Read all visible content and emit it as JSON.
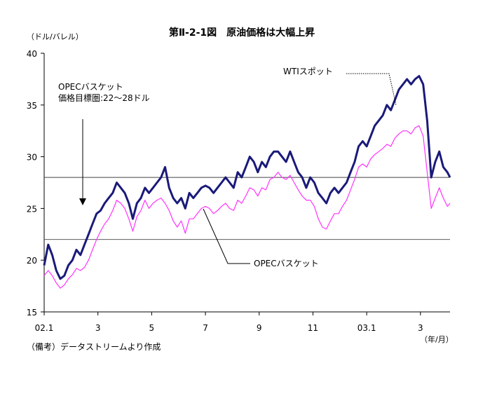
{
  "chart_data": {
    "type": "line",
    "title": "第Ⅱ-2-1図　原油価格は大幅上昇",
    "ylabel": "（ドル/バレル）",
    "xlabel": "（年/月）",
    "source_note": "（備考）データストリームより作成",
    "ylim": [
      15,
      40
    ],
    "yticks": [
      15,
      20,
      25,
      30,
      35,
      40
    ],
    "xlim": [
      0,
      15.1
    ],
    "xticks": [
      {
        "pos": 0,
        "label": "02.1"
      },
      {
        "pos": 2,
        "label": "3"
      },
      {
        "pos": 4,
        "label": "5"
      },
      {
        "pos": 6,
        "label": "7"
      },
      {
        "pos": 8,
        "label": "9"
      },
      {
        "pos": 10,
        "label": "11"
      },
      {
        "pos": 12,
        "label": "03.1"
      },
      {
        "pos": 14,
        "label": "3"
      }
    ],
    "reference_lines": [
      {
        "y": 22
      },
      {
        "y": 28
      }
    ],
    "annotations": {
      "target_line1": "OPECバスケット",
      "target_line2": "価格目標圏:22～28ドル",
      "wti_label": "WTIスポット",
      "opec_label": "OPECバスケット"
    },
    "series": [
      {
        "name": "WTIスポット",
        "color": "#1a1a7a",
        "x": [
          0,
          0.15,
          0.3,
          0.45,
          0.6,
          0.75,
          0.9,
          1.05,
          1.2,
          1.35,
          1.5,
          1.65,
          1.8,
          1.95,
          2.1,
          2.25,
          2.4,
          2.55,
          2.7,
          2.85,
          3.0,
          3.15,
          3.3,
          3.45,
          3.6,
          3.75,
          3.9,
          4.05,
          4.2,
          4.35,
          4.5,
          4.65,
          4.8,
          4.95,
          5.1,
          5.25,
          5.4,
          5.55,
          5.7,
          5.85,
          6.0,
          6.15,
          6.3,
          6.45,
          6.6,
          6.75,
          6.9,
          7.05,
          7.2,
          7.35,
          7.5,
          7.65,
          7.8,
          7.95,
          8.1,
          8.25,
          8.4,
          8.55,
          8.7,
          8.85,
          9.0,
          9.15,
          9.3,
          9.45,
          9.6,
          9.75,
          9.9,
          10.05,
          10.2,
          10.35,
          10.5,
          10.65,
          10.8,
          10.95,
          11.1,
          11.25,
          11.4,
          11.55,
          11.7,
          11.85,
          12.0,
          12.15,
          12.3,
          12.45,
          12.6,
          12.75,
          12.9,
          13.05,
          13.2,
          13.35,
          13.5,
          13.65,
          13.8,
          13.95,
          14.1,
          14.25,
          14.4,
          14.55,
          14.7,
          14.85,
          15.0,
          15.1
        ],
        "values": [
          19.5,
          21.5,
          20.5,
          19.0,
          18.2,
          18.5,
          19.5,
          20.0,
          21.0,
          20.5,
          21.5,
          22.5,
          23.5,
          24.5,
          24.8,
          25.5,
          26.0,
          26.5,
          27.5,
          27.0,
          26.5,
          25.5,
          24.0,
          25.5,
          26.0,
          27.0,
          26.5,
          27.0,
          27.5,
          28.0,
          29.0,
          27.0,
          26.0,
          25.5,
          26.0,
          25.0,
          26.5,
          26.0,
          26.5,
          27.0,
          27.2,
          27.0,
          26.5,
          27.0,
          27.5,
          28.0,
          27.5,
          27.0,
          28.5,
          28.0,
          29.0,
          30.0,
          29.5,
          28.5,
          29.5,
          29.0,
          30.0,
          30.5,
          30.5,
          30.0,
          29.5,
          30.5,
          29.5,
          28.5,
          28.0,
          27.0,
          28.0,
          27.5,
          26.5,
          26.0,
          25.5,
          26.5,
          27.0,
          26.5,
          27.0,
          27.5,
          28.5,
          29.5,
          31.0,
          31.5,
          31.0,
          32.0,
          33.0,
          33.5,
          34.0,
          35.0,
          34.5,
          35.5,
          36.5,
          37.0,
          37.5,
          37.0,
          37.5,
          37.8,
          37.0,
          33.5,
          28.0,
          29.5,
          30.5,
          29.0,
          28.5,
          28.0
        ]
      },
      {
        "name": "OPECバスケット",
        "color": "#ff33ff",
        "x": [
          0,
          0.15,
          0.3,
          0.45,
          0.6,
          0.75,
          0.9,
          1.05,
          1.2,
          1.35,
          1.5,
          1.65,
          1.8,
          1.95,
          2.1,
          2.25,
          2.4,
          2.55,
          2.7,
          2.85,
          3.0,
          3.15,
          3.3,
          3.45,
          3.6,
          3.75,
          3.9,
          4.05,
          4.2,
          4.35,
          4.5,
          4.65,
          4.8,
          4.95,
          5.1,
          5.25,
          5.4,
          5.55,
          5.7,
          5.85,
          6.0,
          6.15,
          6.3,
          6.45,
          6.6,
          6.75,
          6.9,
          7.05,
          7.2,
          7.35,
          7.5,
          7.65,
          7.8,
          7.95,
          8.1,
          8.25,
          8.4,
          8.55,
          8.7,
          8.85,
          9.0,
          9.15,
          9.3,
          9.45,
          9.6,
          9.75,
          9.9,
          10.05,
          10.2,
          10.35,
          10.5,
          10.65,
          10.8,
          10.95,
          11.1,
          11.25,
          11.4,
          11.55,
          11.7,
          11.85,
          12.0,
          12.15,
          12.3,
          12.45,
          12.6,
          12.75,
          12.9,
          13.05,
          13.2,
          13.35,
          13.5,
          13.65,
          13.8,
          13.95,
          14.1,
          14.25,
          14.4,
          14.55,
          14.7,
          14.85,
          15.0,
          15.1
        ],
        "values": [
          18.5,
          19.0,
          18.5,
          17.8,
          17.3,
          17.6,
          18.2,
          18.6,
          19.2,
          19.0,
          19.3,
          20.0,
          21.0,
          22.0,
          22.8,
          23.5,
          24.0,
          24.8,
          25.8,
          25.5,
          25.0,
          24.0,
          22.8,
          24.2,
          24.8,
          25.8,
          25.0,
          25.5,
          25.8,
          26.0,
          25.5,
          24.8,
          23.8,
          23.2,
          23.8,
          22.6,
          24.0,
          24.0,
          24.5,
          25.0,
          25.2,
          25.0,
          24.5,
          24.8,
          25.2,
          25.5,
          25.0,
          24.8,
          25.8,
          25.5,
          26.2,
          27.0,
          26.8,
          26.2,
          27.0,
          26.8,
          27.8,
          28.0,
          28.5,
          28.0,
          27.8,
          28.2,
          27.5,
          26.8,
          26.2,
          25.8,
          25.8,
          25.2,
          24.0,
          23.2,
          23.0,
          23.8,
          24.5,
          24.5,
          25.2,
          25.8,
          26.8,
          27.8,
          29.0,
          29.3,
          29.0,
          29.8,
          30.2,
          30.5,
          30.8,
          31.2,
          31.0,
          31.8,
          32.2,
          32.5,
          32.5,
          32.2,
          32.8,
          33.0,
          32.0,
          28.5,
          25.0,
          26.0,
          27.0,
          26.0,
          25.2,
          25.5
        ]
      }
    ]
  }
}
